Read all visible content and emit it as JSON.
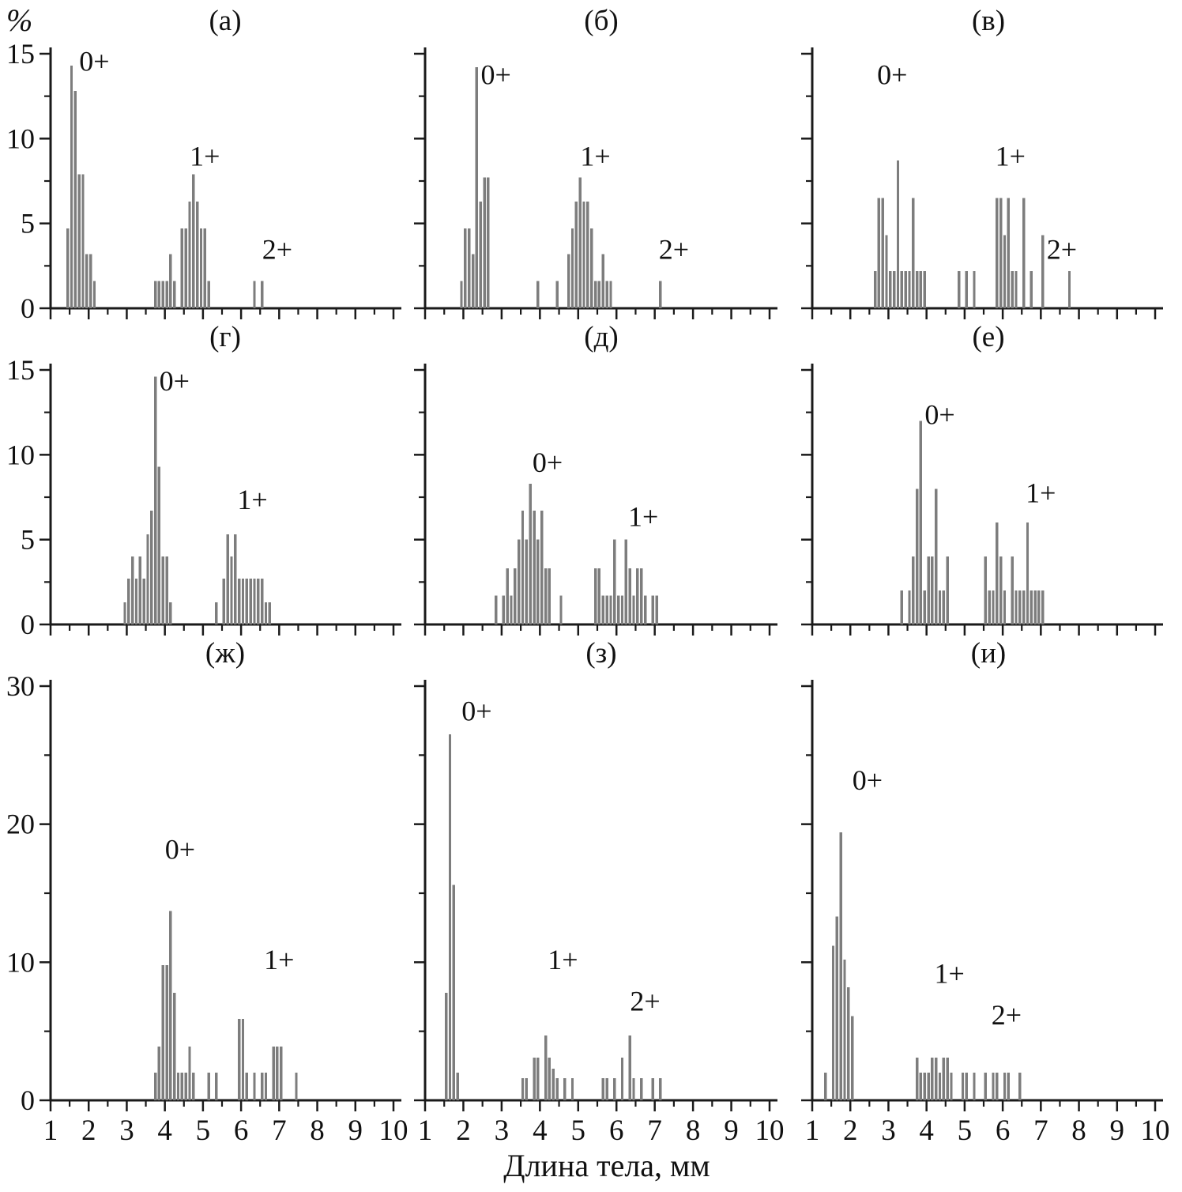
{
  "axis": {
    "percent_symbol": "%",
    "xlabel": "Длина тела, мм"
  },
  "colors": {
    "bar": "#7d7d7d",
    "axis": "#1a1a1a"
  },
  "chart_data": [
    {
      "type": "bar",
      "title": "(а)",
      "xlim": [
        1,
        10
      ],
      "ylim": [
        0,
        15
      ],
      "x_ticks": [
        1,
        2,
        3,
        4,
        5,
        6,
        7,
        8,
        9,
        10
      ],
      "x_minor": [
        1.5,
        2.5,
        3.5,
        4.5,
        5.5,
        6.5,
        7.5,
        8.5,
        9.5
      ],
      "y_ticks": [
        0,
        5,
        10,
        15
      ],
      "y_minor": [
        2.5,
        7.5,
        12.5
      ],
      "annotations": [
        {
          "text": "0+",
          "x": 2.15,
          "y": 14.0
        },
        {
          "text": "1+",
          "x": 5.05,
          "y": 8.4
        },
        {
          "text": "2+",
          "x": 6.95,
          "y": 2.9
        }
      ],
      "bars": [
        [
          1.45,
          4.7
        ],
        [
          1.55,
          14.3
        ],
        [
          1.65,
          12.8
        ],
        [
          1.75,
          7.9
        ],
        [
          1.85,
          7.9
        ],
        [
          1.95,
          3.2
        ],
        [
          2.05,
          3.2
        ],
        [
          2.15,
          1.6
        ],
        [
          3.75,
          1.6
        ],
        [
          3.85,
          1.6
        ],
        [
          3.95,
          1.6
        ],
        [
          4.05,
          1.6
        ],
        [
          4.15,
          3.2
        ],
        [
          4.25,
          1.6
        ],
        [
          4.45,
          4.7
        ],
        [
          4.55,
          4.7
        ],
        [
          4.65,
          6.3
        ],
        [
          4.75,
          7.9
        ],
        [
          4.85,
          6.3
        ],
        [
          4.95,
          4.7
        ],
        [
          5.05,
          4.7
        ],
        [
          5.15,
          1.6
        ],
        [
          6.35,
          1.6
        ],
        [
          6.55,
          1.6
        ]
      ]
    },
    {
      "type": "bar",
      "title": "(б)",
      "xlim": [
        1,
        10
      ],
      "ylim": [
        0,
        15
      ],
      "x_ticks": [
        1,
        2,
        3,
        4,
        5,
        6,
        7,
        8,
        9,
        10
      ],
      "x_minor": [
        1.5,
        2.5,
        3.5,
        4.5,
        5.5,
        6.5,
        7.5,
        8.5,
        9.5
      ],
      "y_ticks": [
        0,
        5,
        10,
        15
      ],
      "y_minor": [
        2.5,
        7.5,
        12.5
      ],
      "annotations": [
        {
          "text": "0+",
          "x": 2.85,
          "y": 13.2
        },
        {
          "text": "1+",
          "x": 5.45,
          "y": 8.4
        },
        {
          "text": "2+",
          "x": 7.5,
          "y": 2.9
        }
      ],
      "bars": [
        [
          1.95,
          1.6
        ],
        [
          2.05,
          4.7
        ],
        [
          2.15,
          4.7
        ],
        [
          2.25,
          3.2
        ],
        [
          2.35,
          14.2
        ],
        [
          2.45,
          6.3
        ],
        [
          2.55,
          7.7
        ],
        [
          2.65,
          7.7
        ],
        [
          3.95,
          1.6
        ],
        [
          4.45,
          1.6
        ],
        [
          4.75,
          3.2
        ],
        [
          4.85,
          4.7
        ],
        [
          4.95,
          6.3
        ],
        [
          5.05,
          7.7
        ],
        [
          5.15,
          6.3
        ],
        [
          5.25,
          6.3
        ],
        [
          5.35,
          4.7
        ],
        [
          5.45,
          1.6
        ],
        [
          5.55,
          1.6
        ],
        [
          5.65,
          3.2
        ],
        [
          5.75,
          1.6
        ],
        [
          5.85,
          1.6
        ],
        [
          7.15,
          1.6
        ]
      ]
    },
    {
      "type": "bar",
      "title": "(в)",
      "xlim": [
        1,
        10
      ],
      "ylim": [
        0,
        15
      ],
      "x_ticks": [
        1,
        2,
        3,
        4,
        5,
        6,
        7,
        8,
        9,
        10
      ],
      "x_minor": [
        1.5,
        2.5,
        3.5,
        4.5,
        5.5,
        6.5,
        7.5,
        8.5,
        9.5
      ],
      "y_ticks": [
        0,
        5,
        10,
        15
      ],
      "y_minor": [
        2.5,
        7.5,
        12.5
      ],
      "annotations": [
        {
          "text": "0+",
          "x": 3.1,
          "y": 13.2
        },
        {
          "text": "1+",
          "x": 6.2,
          "y": 8.4
        },
        {
          "text": "2+",
          "x": 7.55,
          "y": 2.9
        }
      ],
      "bars": [
        [
          2.65,
          2.2
        ],
        [
          2.75,
          6.5
        ],
        [
          2.85,
          6.5
        ],
        [
          2.95,
          4.3
        ],
        [
          3.05,
          2.2
        ],
        [
          3.15,
          2.2
        ],
        [
          3.25,
          8.7
        ],
        [
          3.35,
          2.2
        ],
        [
          3.45,
          2.2
        ],
        [
          3.55,
          2.2
        ],
        [
          3.65,
          6.5
        ],
        [
          3.75,
          2.2
        ],
        [
          3.85,
          2.2
        ],
        [
          3.95,
          2.2
        ],
        [
          4.85,
          2.2
        ],
        [
          5.05,
          2.2
        ],
        [
          5.25,
          2.2
        ],
        [
          5.85,
          6.5
        ],
        [
          5.95,
          6.5
        ],
        [
          6.05,
          4.3
        ],
        [
          6.15,
          6.5
        ],
        [
          6.25,
          2.2
        ],
        [
          6.35,
          2.2
        ],
        [
          6.55,
          6.5
        ],
        [
          6.75,
          2.2
        ],
        [
          7.05,
          4.3
        ],
        [
          7.75,
          2.2
        ]
      ]
    },
    {
      "type": "bar",
      "title": "(г)",
      "xlim": [
        1,
        10
      ],
      "ylim": [
        0,
        15
      ],
      "x_ticks": [
        1,
        2,
        3,
        4,
        5,
        6,
        7,
        8,
        9,
        10
      ],
      "x_minor": [
        1.5,
        2.5,
        3.5,
        4.5,
        5.5,
        6.5,
        7.5,
        8.5,
        9.5
      ],
      "y_ticks": [
        0,
        5,
        10,
        15
      ],
      "y_minor": [
        2.5,
        7.5,
        12.5
      ],
      "annotations": [
        {
          "text": "0+",
          "x": 4.25,
          "y": 13.8
        },
        {
          "text": "1+",
          "x": 6.3,
          "y": 6.8
        }
      ],
      "bars": [
        [
          2.95,
          1.3
        ],
        [
          3.05,
          2.7
        ],
        [
          3.15,
          4.0
        ],
        [
          3.25,
          2.7
        ],
        [
          3.35,
          4.0
        ],
        [
          3.45,
          2.7
        ],
        [
          3.55,
          5.3
        ],
        [
          3.65,
          6.7
        ],
        [
          3.75,
          14.6
        ],
        [
          3.85,
          9.3
        ],
        [
          3.95,
          4.0
        ],
        [
          4.05,
          4.0
        ],
        [
          4.15,
          1.3
        ],
        [
          5.35,
          1.3
        ],
        [
          5.55,
          2.7
        ],
        [
          5.65,
          5.3
        ],
        [
          5.75,
          4.0
        ],
        [
          5.85,
          5.3
        ],
        [
          5.95,
          2.7
        ],
        [
          6.05,
          2.7
        ],
        [
          6.15,
          2.7
        ],
        [
          6.25,
          2.7
        ],
        [
          6.35,
          2.7
        ],
        [
          6.45,
          2.7
        ],
        [
          6.55,
          2.7
        ],
        [
          6.65,
          1.3
        ],
        [
          6.75,
          1.3
        ]
      ]
    },
    {
      "type": "bar",
      "title": "(д)",
      "xlim": [
        1,
        10
      ],
      "ylim": [
        0,
        15
      ],
      "x_ticks": [
        1,
        2,
        3,
        4,
        5,
        6,
        7,
        8,
        9,
        10
      ],
      "x_minor": [
        1.5,
        2.5,
        3.5,
        4.5,
        5.5,
        6.5,
        7.5,
        8.5,
        9.5
      ],
      "y_ticks": [
        0,
        5,
        10,
        15
      ],
      "y_minor": [
        2.5,
        7.5,
        12.5
      ],
      "annotations": [
        {
          "text": "0+",
          "x": 4.2,
          "y": 9.0
        },
        {
          "text": "1+",
          "x": 6.7,
          "y": 5.8
        }
      ],
      "bars": [
        [
          2.85,
          1.7
        ],
        [
          3.05,
          1.7
        ],
        [
          3.15,
          3.3
        ],
        [
          3.25,
          1.7
        ],
        [
          3.35,
          3.3
        ],
        [
          3.45,
          5.0
        ],
        [
          3.55,
          6.7
        ],
        [
          3.65,
          5.0
        ],
        [
          3.75,
          8.3
        ],
        [
          3.85,
          6.7
        ],
        [
          3.95,
          5.0
        ],
        [
          4.05,
          6.7
        ],
        [
          4.15,
          3.3
        ],
        [
          4.25,
          3.3
        ],
        [
          4.55,
          1.7
        ],
        [
          5.45,
          3.3
        ],
        [
          5.55,
          3.3
        ],
        [
          5.65,
          1.7
        ],
        [
          5.75,
          1.7
        ],
        [
          5.85,
          1.7
        ],
        [
          5.95,
          5.0
        ],
        [
          6.05,
          1.7
        ],
        [
          6.15,
          1.7
        ],
        [
          6.25,
          5.0
        ],
        [
          6.35,
          3.3
        ],
        [
          6.45,
          1.7
        ],
        [
          6.55,
          3.3
        ],
        [
          6.65,
          3.3
        ],
        [
          6.75,
          1.7
        ],
        [
          6.95,
          1.7
        ],
        [
          7.05,
          1.7
        ]
      ]
    },
    {
      "type": "bar",
      "title": "(е)",
      "xlim": [
        1,
        10
      ],
      "ylim": [
        0,
        15
      ],
      "x_ticks": [
        1,
        2,
        3,
        4,
        5,
        6,
        7,
        8,
        9,
        10
      ],
      "x_minor": [
        1.5,
        2.5,
        3.5,
        4.5,
        5.5,
        6.5,
        7.5,
        8.5,
        9.5
      ],
      "y_ticks": [
        0,
        5,
        10,
        15
      ],
      "y_minor": [
        2.5,
        7.5,
        12.5
      ],
      "annotations": [
        {
          "text": "0+",
          "x": 4.35,
          "y": 11.8
        },
        {
          "text": "1+",
          "x": 7.0,
          "y": 7.2
        }
      ],
      "bars": [
        [
          3.35,
          2.0
        ],
        [
          3.55,
          2.0
        ],
        [
          3.65,
          4.0
        ],
        [
          3.75,
          8.0
        ],
        [
          3.85,
          12.0
        ],
        [
          3.95,
          2.0
        ],
        [
          4.05,
          4.0
        ],
        [
          4.15,
          4.0
        ],
        [
          4.25,
          8.0
        ],
        [
          4.35,
          2.0
        ],
        [
          4.45,
          2.0
        ],
        [
          4.55,
          4.0
        ],
        [
          5.55,
          4.0
        ],
        [
          5.65,
          2.0
        ],
        [
          5.75,
          2.0
        ],
        [
          5.85,
          6.0
        ],
        [
          5.95,
          4.0
        ],
        [
          6.05,
          2.0
        ],
        [
          6.25,
          4.0
        ],
        [
          6.35,
          2.0
        ],
        [
          6.45,
          2.0
        ],
        [
          6.55,
          2.0
        ],
        [
          6.65,
          6.0
        ],
        [
          6.75,
          2.0
        ],
        [
          6.85,
          2.0
        ],
        [
          6.95,
          2.0
        ],
        [
          7.05,
          2.0
        ]
      ]
    },
    {
      "type": "bar",
      "title": "(ж)",
      "xlim": [
        1,
        10
      ],
      "ylim": [
        0,
        30
      ],
      "x_ticks": [
        1,
        2,
        3,
        4,
        5,
        6,
        7,
        8,
        9,
        10
      ],
      "x_minor": [
        1.5,
        2.5,
        3.5,
        4.5,
        5.5,
        6.5,
        7.5,
        8.5,
        9.5
      ],
      "y_ticks": [
        0,
        10,
        20,
        30
      ],
      "y_minor": [
        5,
        15,
        25
      ],
      "annotations": [
        {
          "text": "0+",
          "x": 4.4,
          "y": 17.5
        },
        {
          "text": "1+",
          "x": 7.0,
          "y": 9.5
        }
      ],
      "bars": [
        [
          3.75,
          2.0
        ],
        [
          3.85,
          3.9
        ],
        [
          3.95,
          9.8
        ],
        [
          4.05,
          9.8
        ],
        [
          4.15,
          13.7
        ],
        [
          4.25,
          7.8
        ],
        [
          4.35,
          2.0
        ],
        [
          4.45,
          2.0
        ],
        [
          4.55,
          2.0
        ],
        [
          4.65,
          3.9
        ],
        [
          4.75,
          2.0
        ],
        [
          5.15,
          2.0
        ],
        [
          5.35,
          2.0
        ],
        [
          5.95,
          5.9
        ],
        [
          6.05,
          5.9
        ],
        [
          6.15,
          2.0
        ],
        [
          6.35,
          2.0
        ],
        [
          6.55,
          2.0
        ],
        [
          6.65,
          2.0
        ],
        [
          6.85,
          3.9
        ],
        [
          6.95,
          3.9
        ],
        [
          7.05,
          3.9
        ],
        [
          7.45,
          2.0
        ]
      ]
    },
    {
      "type": "bar",
      "title": "(з)",
      "xlim": [
        1,
        10
      ],
      "ylim": [
        0,
        30
      ],
      "x_ticks": [
        1,
        2,
        3,
        4,
        5,
        6,
        7,
        8,
        9,
        10
      ],
      "x_minor": [
        1.5,
        2.5,
        3.5,
        4.5,
        5.5,
        6.5,
        7.5,
        8.5,
        9.5
      ],
      "y_ticks": [
        0,
        10,
        20,
        30
      ],
      "y_minor": [
        5,
        15,
        25
      ],
      "annotations": [
        {
          "text": "0+",
          "x": 2.35,
          "y": 27.5
        },
        {
          "text": "1+",
          "x": 4.6,
          "y": 9.5
        },
        {
          "text": "2+",
          "x": 6.75,
          "y": 6.5
        }
      ],
      "bars": [
        [
          1.55,
          7.8
        ],
        [
          1.65,
          26.5
        ],
        [
          1.75,
          15.6
        ],
        [
          1.85,
          2.0
        ],
        [
          3.55,
          1.6
        ],
        [
          3.65,
          1.6
        ],
        [
          3.85,
          3.1
        ],
        [
          3.95,
          3.1
        ],
        [
          4.15,
          4.7
        ],
        [
          4.25,
          3.1
        ],
        [
          4.35,
          2.3
        ],
        [
          4.45,
          1.6
        ],
        [
          4.65,
          1.6
        ],
        [
          4.85,
          1.6
        ],
        [
          5.65,
          1.6
        ],
        [
          5.75,
          1.6
        ],
        [
          5.95,
          1.6
        ],
        [
          6.15,
          3.1
        ],
        [
          6.35,
          4.7
        ],
        [
          6.45,
          1.6
        ],
        [
          6.65,
          1.6
        ],
        [
          6.95,
          1.6
        ],
        [
          7.15,
          1.6
        ]
      ]
    },
    {
      "type": "bar",
      "title": "(и)",
      "xlim": [
        1,
        10
      ],
      "ylim": [
        0,
        30
      ],
      "x_ticks": [
        1,
        2,
        3,
        4,
        5,
        6,
        7,
        8,
        9,
        10
      ],
      "x_minor": [
        1.5,
        2.5,
        3.5,
        4.5,
        5.5,
        6.5,
        7.5,
        8.5,
        9.5
      ],
      "y_ticks": [
        0,
        10,
        20,
        30
      ],
      "y_minor": [
        5,
        15,
        25
      ],
      "annotations": [
        {
          "text": "0+",
          "x": 2.45,
          "y": 22.5
        },
        {
          "text": "1+",
          "x": 4.6,
          "y": 8.5
        },
        {
          "text": "2+",
          "x": 6.1,
          "y": 5.5
        }
      ],
      "bars": [
        [
          1.35,
          2.0
        ],
        [
          1.55,
          11.2
        ],
        [
          1.65,
          13.3
        ],
        [
          1.75,
          19.4
        ],
        [
          1.85,
          10.2
        ],
        [
          1.95,
          8.2
        ],
        [
          2.05,
          6.1
        ],
        [
          3.75,
          3.1
        ],
        [
          3.85,
          2.0
        ],
        [
          3.95,
          2.0
        ],
        [
          4.05,
          2.0
        ],
        [
          4.15,
          3.1
        ],
        [
          4.25,
          3.1
        ],
        [
          4.35,
          2.0
        ],
        [
          4.45,
          3.1
        ],
        [
          4.55,
          3.1
        ],
        [
          4.65,
          2.0
        ],
        [
          4.95,
          2.0
        ],
        [
          5.05,
          2.0
        ],
        [
          5.25,
          2.0
        ],
        [
          5.55,
          2.0
        ],
        [
          5.75,
          2.0
        ],
        [
          5.85,
          2.0
        ],
        [
          6.05,
          2.0
        ],
        [
          6.15,
          2.0
        ],
        [
          6.45,
          2.0
        ]
      ]
    }
  ]
}
